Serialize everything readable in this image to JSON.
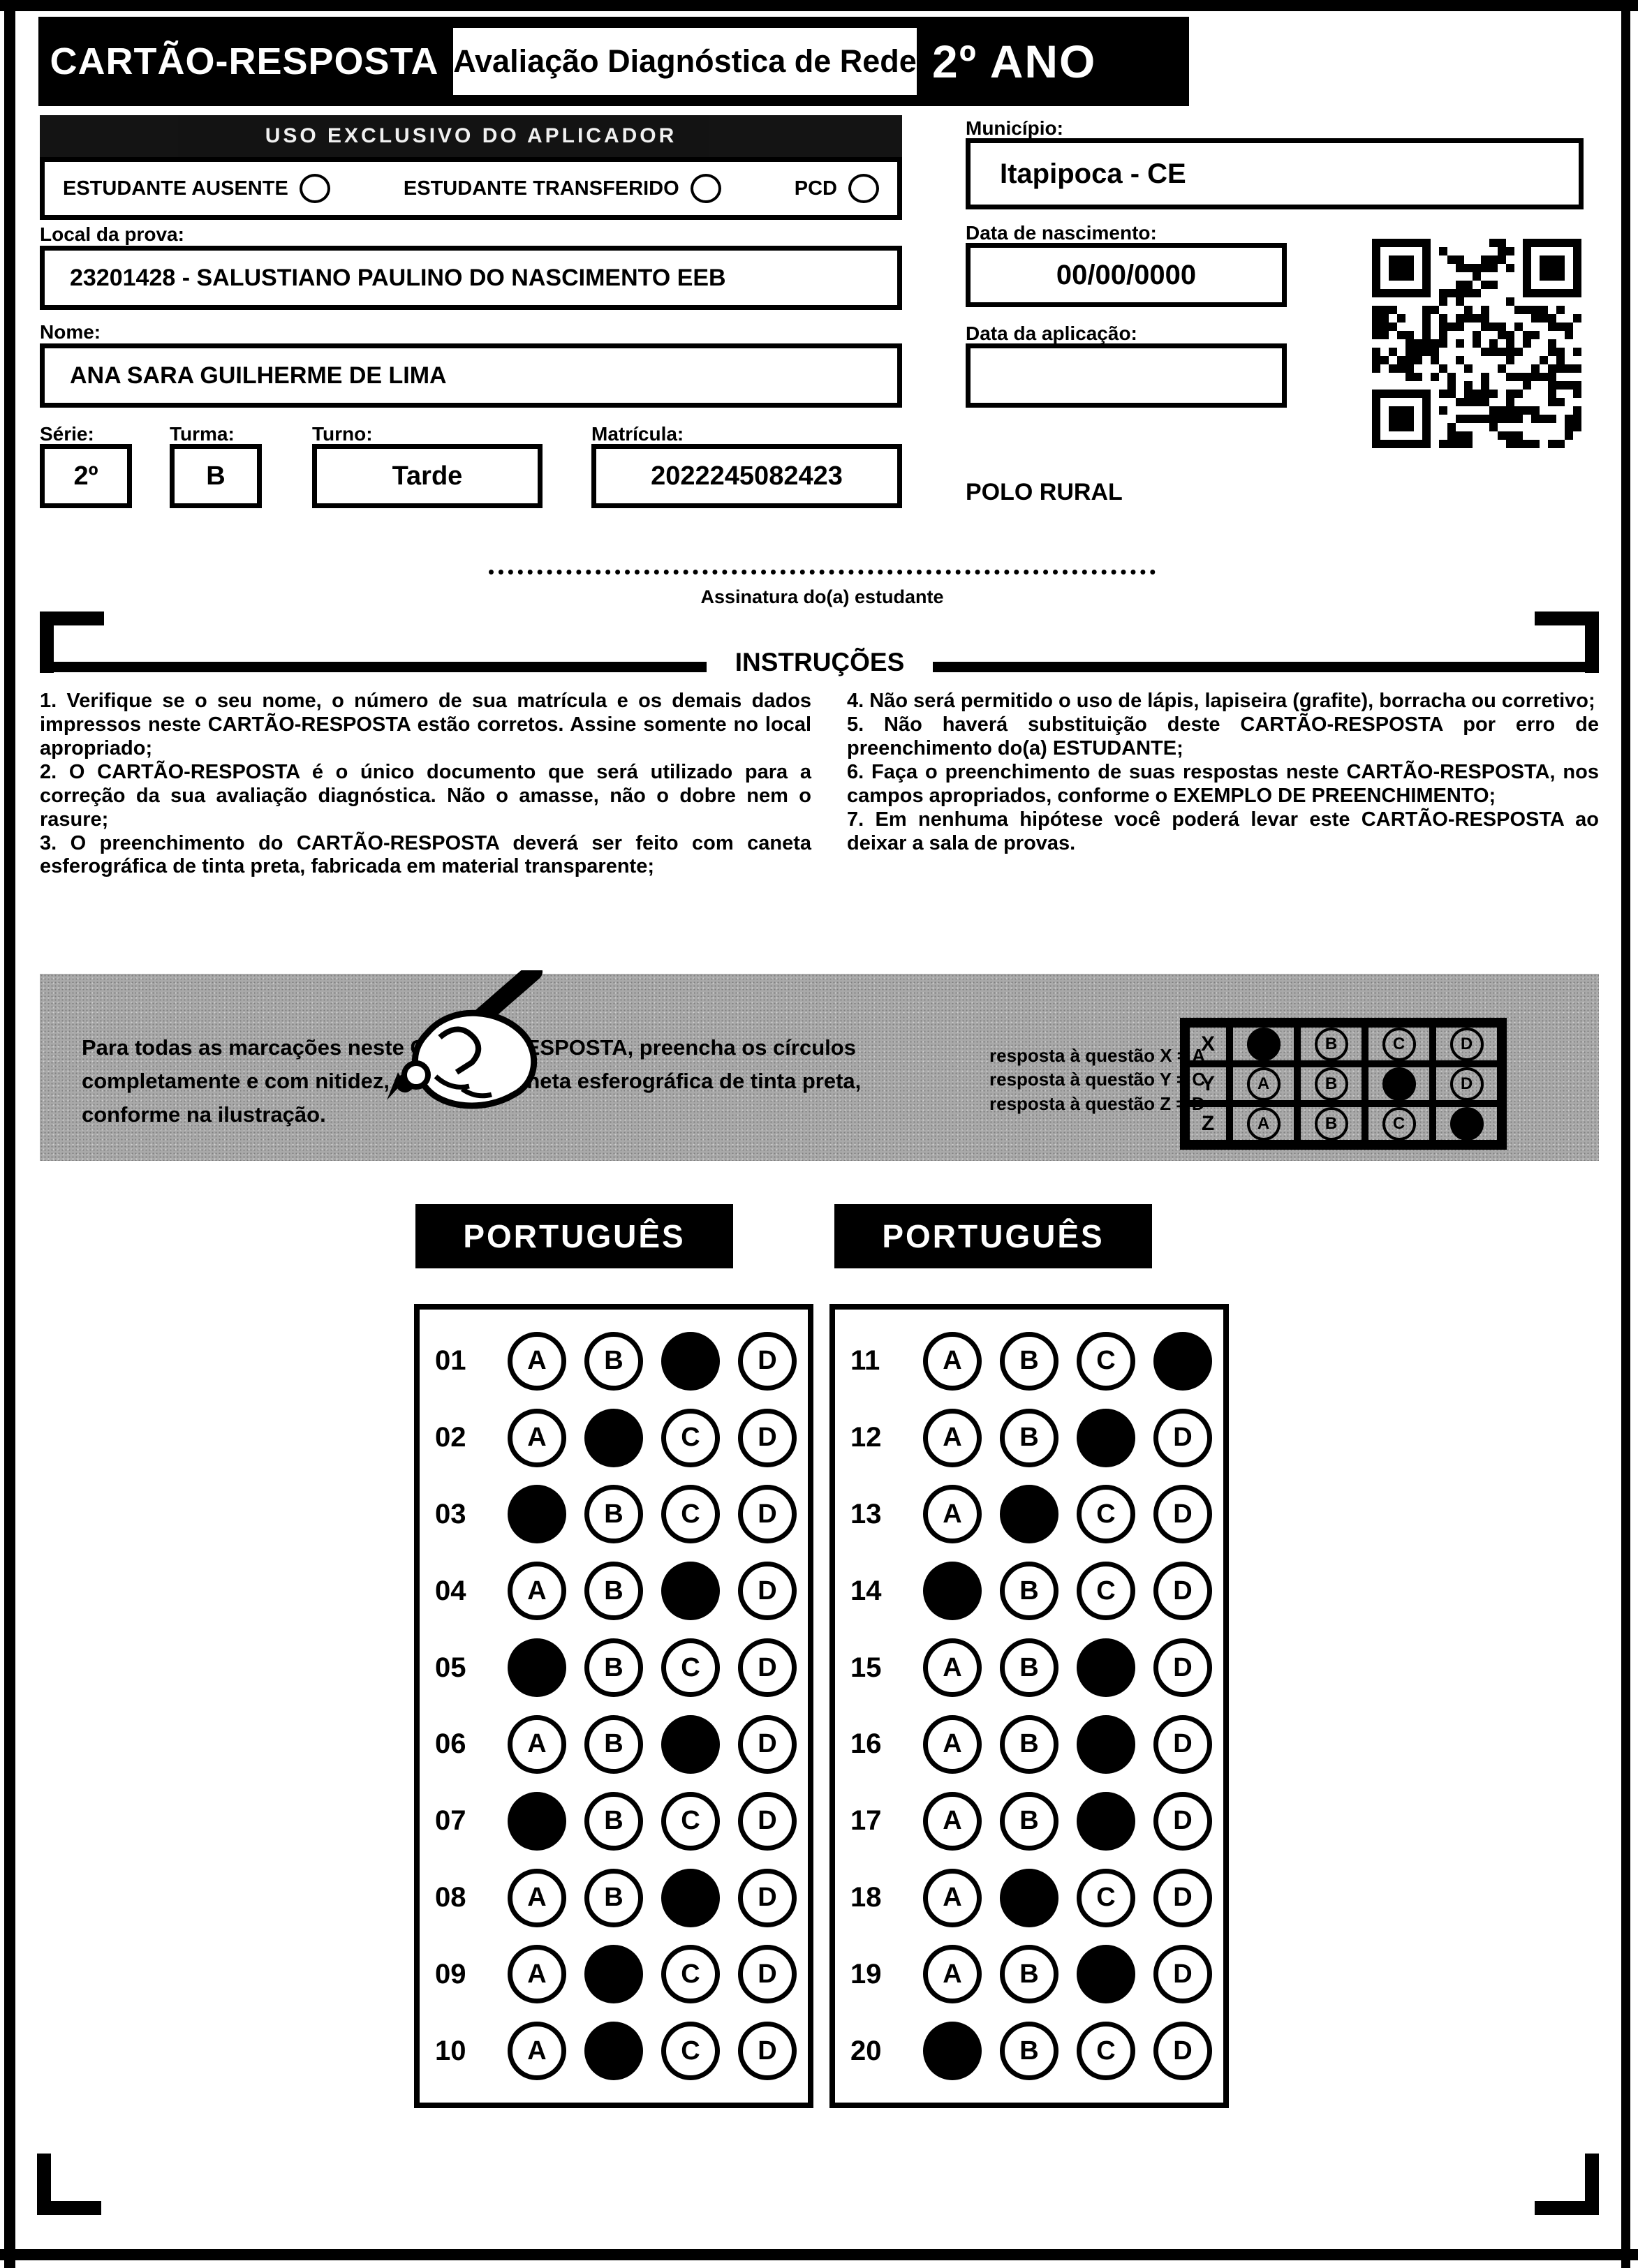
{
  "header": {
    "card_title": "CARTÃO-RESPOSTA",
    "exam_title": "Avaliação Diagnóstica de Rede",
    "grade": "2º ANO"
  },
  "aplicador": {
    "title": "USO EXCLUSIVO DO APLICADOR",
    "options": [
      "ESTUDANTE AUSENTE",
      "ESTUDANTE TRANSFERIDO",
      "PCD"
    ]
  },
  "fields": {
    "local": {
      "label": "Local da prova:",
      "value": "23201428 - SALUSTIANO PAULINO DO NASCIMENTO EEB"
    },
    "nome": {
      "label": "Nome:",
      "value": "ANA SARA GUILHERME DE LIMA"
    },
    "serie": {
      "label": "Série:",
      "value": "2º"
    },
    "turma": {
      "label": "Turma:",
      "value": "B"
    },
    "turno": {
      "label": "Turno:",
      "value": "Tarde"
    },
    "matricula": {
      "label": "Matrícula:",
      "value": "2022245082423"
    },
    "municipio": {
      "label": "Município:",
      "value": "Itapipoca - CE"
    },
    "nascimento": {
      "label": "Data de nascimento:",
      "value": "00/00/0000"
    },
    "aplicacao": {
      "label": "Data da aplicação:",
      "value": ""
    },
    "polo": "POLO RURAL"
  },
  "signature": {
    "label": "Assinatura do(a) estudante"
  },
  "instructions": {
    "title": "INSTRUÇÕES",
    "left": [
      "1. Verifique se o seu nome, o número de sua matrícula e os demais dados impressos neste CARTÃO-RESPOSTA estão corretos. Assine somente no local apropriado;",
      "2. O CARTÃO-RESPOSTA é o único documento que será utilizado para a correção da sua avaliação diagnóstica. Não o amasse, não o dobre nem o rasure;",
      "3. O preenchimento do CARTÃO-RESPOSTA deverá ser feito com caneta esferográfica de tinta preta, fabricada em material transparente;"
    ],
    "right": [
      "4. Não será permitido o uso de lápis, lapiseira (grafite), borracha ou corretivo;",
      "5. Não haverá substituição deste CARTÃO-RESPOSTA por erro de preenchimento do(a) ESTUDANTE;",
      "6. Faça o preenchimento de suas respostas neste CARTÃO-RESPOSTA, nos campos apropriados, conforme o EXEMPLO DE PREENCHIMENTO;",
      "7. Em nenhuma hipótese você poderá levar este CARTÃO-RESPOSTA ao deixar a sala de provas."
    ]
  },
  "example": {
    "text": "Para todas as marcações neste CARTÃO-RESPOSTA, preencha os círculos completamente e com nitidez, utilizando caneta esferográfica de tinta preta, conforme na ilustração.",
    "legend": [
      "resposta à questão X = A",
      "resposta à questão Y = C",
      "resposta à questão Z = D"
    ],
    "options": [
      "A",
      "B",
      "C",
      "D"
    ],
    "rows": [
      {
        "label": "X",
        "filled": "A"
      },
      {
        "label": "Y",
        "filled": "C"
      },
      {
        "label": "Z",
        "filled": "D"
      }
    ]
  },
  "answers": {
    "options": [
      "A",
      "B",
      "C",
      "D"
    ],
    "sections": [
      {
        "title": "PORTUGUÊS",
        "questions": [
          {
            "num": "01",
            "filled": "C"
          },
          {
            "num": "02",
            "filled": "B"
          },
          {
            "num": "03",
            "filled": "A"
          },
          {
            "num": "04",
            "filled": "C"
          },
          {
            "num": "05",
            "filled": "A"
          },
          {
            "num": "06",
            "filled": "C"
          },
          {
            "num": "07",
            "filled": "A"
          },
          {
            "num": "08",
            "filled": "C"
          },
          {
            "num": "09",
            "filled": "B"
          },
          {
            "num": "10",
            "filled": "B"
          }
        ]
      },
      {
        "title": "PORTUGUÊS",
        "questions": [
          {
            "num": "11",
            "filled": "D"
          },
          {
            "num": "12",
            "filled": "C"
          },
          {
            "num": "13",
            "filled": "B"
          },
          {
            "num": "14",
            "filled": "A"
          },
          {
            "num": "15",
            "filled": "C"
          },
          {
            "num": "16",
            "filled": "C"
          },
          {
            "num": "17",
            "filled": "C"
          },
          {
            "num": "18",
            "filled": "B"
          },
          {
            "num": "19",
            "filled": "C"
          },
          {
            "num": "20",
            "filled": "A"
          }
        ]
      }
    ]
  }
}
